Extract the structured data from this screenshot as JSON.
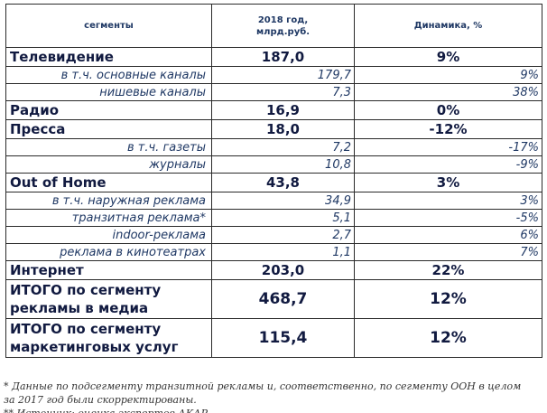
{
  "header": {
    "col1": "сегменты",
    "col2_line1": "2018 год,",
    "col2_line2": "млрд.руб.",
    "col3": "Динамика, %"
  },
  "rows": [
    {
      "label": "Телевидение",
      "value": "187,0",
      "change": "9%"
    },
    {
      "label": "в т.ч. основные каналы",
      "value": "179,7",
      "change": "9%"
    },
    {
      "label": "нишевые каналы",
      "value": "7,3",
      "change": "38%"
    },
    {
      "label": "Радио",
      "value": "16,9",
      "change": "0%"
    },
    {
      "label": "Пресса",
      "value": "18,0",
      "change": "-12%"
    },
    {
      "label": "в т.ч. газеты",
      "value": "7,2",
      "change": "-17%"
    },
    {
      "label": "журналы",
      "value": "10,8",
      "change": "-9%"
    },
    {
      "label": "Out of Home",
      "value": "43,8",
      "change": "3%"
    },
    {
      "label": "в т.ч. наружная реклама",
      "value": "34,9",
      "change": "3%"
    },
    {
      "label": "транзитная реклама*",
      "value": "5,1",
      "change": "-5%"
    },
    {
      "label": "indoor-реклама",
      "value": "2,7",
      "change": "6%"
    },
    {
      "label": "реклама в кинотеатрах",
      "value": "1,1",
      "change": "7%"
    },
    {
      "label": "Интернет",
      "value": "203,0",
      "change": "22%"
    },
    {
      "label_line1": "ИТОГО по сегменту",
      "label_line2": "рекламы в медиа",
      "value": "468,7",
      "change": "12%"
    },
    {
      "label_line1": "ИТОГО по сегменту",
      "label_line2": "маркетинговых услуг",
      "value": "115,4",
      "change": "12%"
    }
  ],
  "footnote": {
    "line1": "* Данные по подсегменту транзитной рекламы и, соответственно, по сегменту OOH в целом",
    "line2": "за 2017 год были скорректированы.",
    "line3": "** Источник: оценка экспертов АКАР"
  }
}
